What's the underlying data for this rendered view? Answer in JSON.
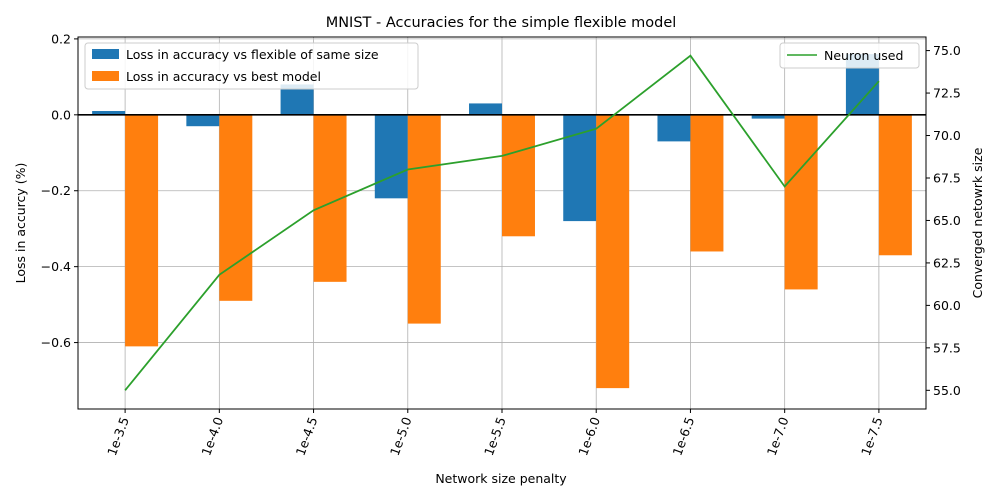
{
  "chart_data": {
    "type": "bar",
    "title": "MNIST - Accuracies for the simple flexible model",
    "xlabel": "Network size penalty",
    "ylabel": "Loss in accurcy (%)",
    "ylabel_right": "Converged netowrk size",
    "categories": [
      "1e-3.5",
      "1e-4.0",
      "1e-4.5",
      "1e-5.0",
      "1e-5.5",
      "1e-6.0",
      "1e-6.5",
      "1e-7.0",
      "1e-7.5"
    ],
    "ylim": [
      -0.775,
      0.205
    ],
    "yticks": [
      -0.6,
      -0.4,
      -0.2,
      0.0,
      0.2
    ],
    "ytick_labels": [
      "−0.6",
      "−0.4",
      "−0.2",
      "0.0",
      "0.2"
    ],
    "ylim_right": [
      53.9,
      75.8
    ],
    "yticks_right": [
      55.0,
      57.5,
      60.0,
      62.5,
      65.0,
      67.5,
      70.0,
      72.5,
      75.0
    ],
    "ytick_labels_right": [
      "55.0",
      "57.5",
      "60.0",
      "62.5",
      "65.0",
      "67.5",
      "70.0",
      "72.5",
      "75.0"
    ],
    "grid": true,
    "series": [
      {
        "name": "Loss in accuracy vs flexible of same size",
        "type": "bar",
        "axis": "left",
        "color": "#1f77b4",
        "values": [
          0.01,
          -0.03,
          0.08,
          -0.22,
          0.03,
          -0.28,
          -0.07,
          -0.01,
          0.16
        ]
      },
      {
        "name": "Loss in accuracy vs best model",
        "type": "bar",
        "axis": "left",
        "color": "#ff7f0e",
        "values": [
          -0.61,
          -0.49,
          -0.44,
          -0.55,
          -0.32,
          -0.72,
          -0.36,
          -0.46,
          -0.37
        ]
      },
      {
        "name": "Neuron used",
        "type": "line",
        "axis": "right",
        "color": "#2ca02c",
        "values": [
          55.0,
          61.8,
          65.6,
          68.0,
          68.8,
          70.4,
          74.7,
          67.0,
          73.2
        ]
      }
    ],
    "legend_left_position": "upper-left",
    "legend_right_position": "upper-right"
  }
}
